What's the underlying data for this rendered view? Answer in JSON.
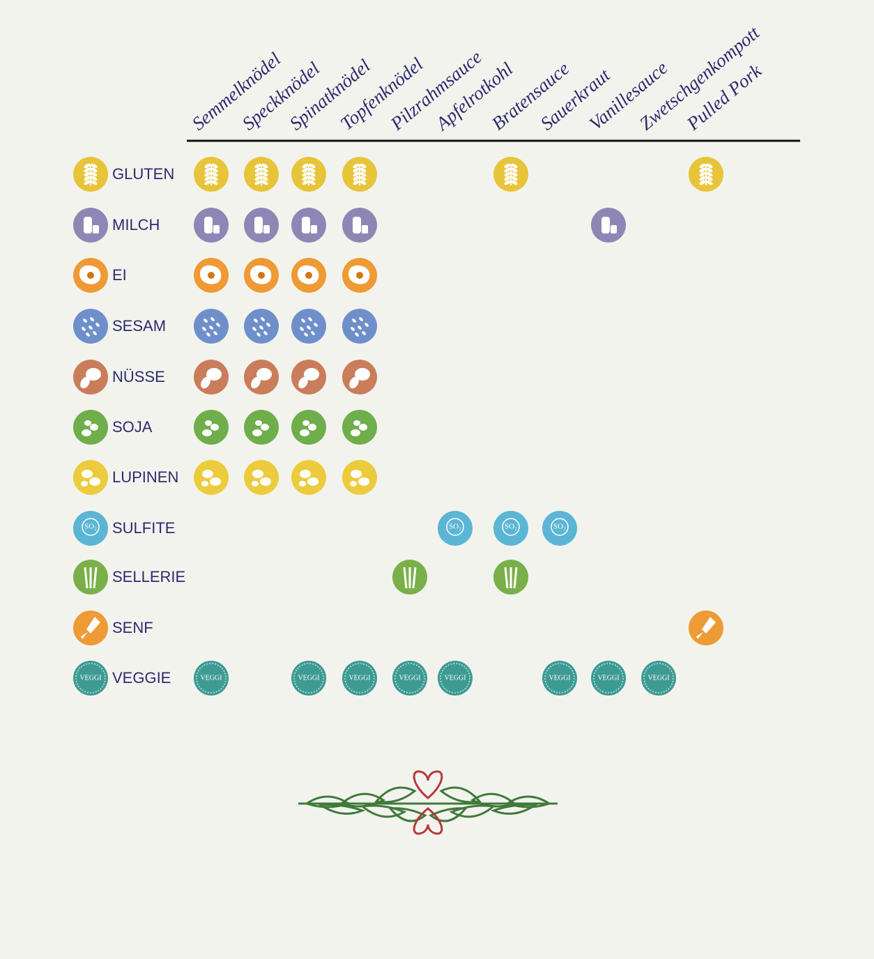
{
  "columns": [
    "Semmelknödel",
    "Speckknödel",
    "Spinatknödel",
    "Topfenknödel",
    "Pilzrahmsauce",
    "Apfelrotkohl",
    "Bratensauce",
    "Sauerkraut",
    "Vanillesauce",
    "Zwetschgenkompott",
    "Pulled Pork"
  ],
  "badges": {
    "sulfite": "SO₂",
    "veggie": "VEGGI"
  },
  "rows": [
    {
      "label": "GLUTEN",
      "color": "#e8c43a",
      "cells": [
        true,
        true,
        true,
        true,
        false,
        false,
        true,
        false,
        false,
        false,
        true
      ]
    },
    {
      "label": "MILCH",
      "color": "#8f86b5",
      "cells": [
        true,
        true,
        true,
        true,
        false,
        false,
        false,
        false,
        true,
        false,
        false
      ]
    },
    {
      "label": "EI",
      "color": "#ee9a35",
      "cells": [
        true,
        true,
        true,
        true,
        false,
        false,
        false,
        false,
        false,
        false,
        false
      ]
    },
    {
      "label": "SESAM",
      "color": "#6f8fcb",
      "cells": [
        true,
        true,
        true,
        true,
        false,
        false,
        false,
        false,
        false,
        false,
        false
      ]
    },
    {
      "label": "NÜSSE",
      "color": "#c97d5a",
      "cells": [
        true,
        true,
        true,
        true,
        false,
        false,
        false,
        false,
        false,
        false,
        false
      ]
    },
    {
      "label": "SOJA",
      "color": "#6fae4b",
      "cells": [
        true,
        true,
        true,
        true,
        false,
        false,
        false,
        false,
        false,
        false,
        false
      ]
    },
    {
      "label": "LUPINEN",
      "color": "#eccb3c",
      "cells": [
        true,
        true,
        true,
        true,
        false,
        false,
        false,
        false,
        false,
        false,
        false
      ]
    },
    {
      "label": "SULFITE",
      "color": "#5bb5d4",
      "cells": [
        false,
        false,
        false,
        false,
        false,
        true,
        true,
        true,
        false,
        false,
        false
      ]
    },
    {
      "label": "SELLERIE",
      "color": "#79b04a",
      "cells": [
        false,
        false,
        false,
        false,
        true,
        false,
        true,
        false,
        false,
        false,
        false
      ]
    },
    {
      "label": "SENF",
      "color": "#ee9a35",
      "cells": [
        false,
        false,
        false,
        false,
        false,
        false,
        false,
        false,
        false,
        false,
        true
      ]
    },
    {
      "label": "VEGGIE",
      "color": "#3e9b94",
      "cells": [
        true,
        false,
        true,
        true,
        true,
        true,
        false,
        true,
        true,
        true,
        false
      ]
    }
  ]
}
